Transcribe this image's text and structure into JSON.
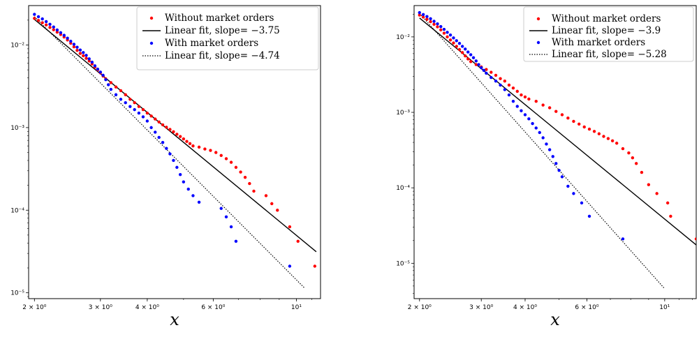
{
  "chart_data": [
    {
      "type": "scatter",
      "xlabel": "x",
      "xscale": "log",
      "yscale": "log",
      "xlim": [
        1.93,
        11.6
      ],
      "ylim": [
        8.5e-06,
        0.03
      ],
      "xticks": [
        {
          "value": 2,
          "label": "2 × 10⁰"
        },
        {
          "value": 3,
          "label": "3 × 10⁰"
        },
        {
          "value": 4,
          "label": "4 × 10⁰"
        },
        {
          "value": 6,
          "label": "6 × 10⁰"
        },
        {
          "value": 10,
          "label": "10¹"
        }
      ],
      "yticks": [
        {
          "value": 1e-05,
          "label": "10⁻⁵"
        },
        {
          "value": 0.0001,
          "label": "10⁻⁴"
        },
        {
          "value": 0.001,
          "label": "10⁻³"
        },
        {
          "value": 0.01,
          "label": "10⁻²"
        }
      ],
      "legend_position": "top-right",
      "series": [
        {
          "name": "Without market orders",
          "kind": "points",
          "color": "#ff0000",
          "points": [
            [
              2.0,
              0.021
            ],
            [
              2.05,
              0.0198
            ],
            [
              2.1,
              0.0186
            ],
            [
              2.15,
              0.0175
            ],
            [
              2.2,
              0.0163
            ],
            [
              2.25,
              0.0153
            ],
            [
              2.3,
              0.0143
            ],
            [
              2.35,
              0.0134
            ],
            [
              2.4,
              0.0125
            ],
            [
              2.45,
              0.0115
            ],
            [
              2.5,
              0.0105
            ],
            [
              2.55,
              0.0095
            ],
            [
              2.6,
              0.0086
            ],
            [
              2.65,
              0.0079
            ],
            [
              2.7,
              0.0074
            ],
            [
              2.75,
              0.0069
            ],
            [
              2.8,
              0.0064
            ],
            [
              2.85,
              0.0059
            ],
            [
              2.9,
              0.0054
            ],
            [
              2.95,
              0.005
            ],
            [
              3.0,
              0.0046
            ],
            [
              3.05,
              0.0042
            ],
            [
              3.1,
              0.0039
            ],
            [
              3.2,
              0.0035
            ],
            [
              3.3,
              0.0031
            ],
            [
              3.4,
              0.0028
            ],
            [
              3.5,
              0.0025
            ],
            [
              3.6,
              0.0022
            ],
            [
              3.7,
              0.002
            ],
            [
              3.8,
              0.0018
            ],
            [
              3.9,
              0.00165
            ],
            [
              4.0,
              0.0015
            ],
            [
              4.1,
              0.00138
            ],
            [
              4.2,
              0.00127
            ],
            [
              4.3,
              0.00117
            ],
            [
              4.4,
              0.00108
            ],
            [
              4.5,
              0.00101
            ],
            [
              4.6,
              0.00095
            ],
            [
              4.7,
              0.00089
            ],
            [
              4.8,
              0.00083
            ],
            [
              4.9,
              0.00078
            ],
            [
              5.0,
              0.00073
            ],
            [
              5.1,
              0.00068
            ],
            [
              5.2,
              0.00064
            ],
            [
              5.3,
              0.0006
            ],
            [
              5.5,
              0.00058
            ],
            [
              5.7,
              0.00055
            ],
            [
              5.9,
              0.00053
            ],
            [
              6.1,
              0.0005
            ],
            [
              6.3,
              0.00046
            ],
            [
              6.5,
              0.00042
            ],
            [
              6.7,
              0.00038
            ],
            [
              6.9,
              0.00033
            ],
            [
              7.1,
              0.00029
            ],
            [
              7.3,
              0.00025
            ],
            [
              7.5,
              0.00021
            ],
            [
              7.7,
              0.00017
            ],
            [
              8.3,
              0.00015
            ],
            [
              8.6,
              0.00012
            ],
            [
              8.9,
              0.0001
            ],
            [
              9.6,
              6.3e-05
            ],
            [
              10.1,
              4.2e-05
            ],
            [
              11.2,
              2.1e-05
            ]
          ]
        },
        {
          "name": "Linear fit, slope= −3.75",
          "kind": "fit",
          "color": "#000000",
          "dash": "solid",
          "endpoints": [
            [
              2.0,
              0.0204
            ],
            [
              11.3,
              3.14e-05
            ]
          ]
        },
        {
          "name": "With market orders",
          "kind": "points",
          "color": "#0000ff",
          "points": [
            [
              2.0,
              0.0235
            ],
            [
              2.05,
              0.022
            ],
            [
              2.1,
              0.0207
            ],
            [
              2.15,
              0.0192
            ],
            [
              2.2,
              0.0178
            ],
            [
              2.25,
              0.0165
            ],
            [
              2.3,
              0.0152
            ],
            [
              2.35,
              0.0141
            ],
            [
              2.4,
              0.0131
            ],
            [
              2.45,
              0.0121
            ],
            [
              2.5,
              0.0111
            ],
            [
              2.55,
              0.0102
            ],
            [
              2.6,
              0.0094
            ],
            [
              2.65,
              0.0087
            ],
            [
              2.7,
              0.0081
            ],
            [
              2.75,
              0.0075
            ],
            [
              2.8,
              0.0068
            ],
            [
              2.85,
              0.0062
            ],
            [
              2.9,
              0.0056
            ],
            [
              2.95,
              0.0051
            ],
            [
              3.0,
              0.0047
            ],
            [
              3.05,
              0.0043
            ],
            [
              3.1,
              0.0038
            ],
            [
              3.15,
              0.0033
            ],
            [
              3.2,
              0.0029
            ],
            [
              3.3,
              0.0025
            ],
            [
              3.4,
              0.0022
            ],
            [
              3.5,
              0.002
            ],
            [
              3.6,
              0.0018
            ],
            [
              3.7,
              0.00165
            ],
            [
              3.8,
              0.0015
            ],
            [
              3.9,
              0.00135
            ],
            [
              4.0,
              0.0012
            ],
            [
              4.1,
              0.001
            ],
            [
              4.2,
              0.00088
            ],
            [
              4.3,
              0.00076
            ],
            [
              4.4,
              0.00066
            ],
            [
              4.5,
              0.00056
            ],
            [
              4.6,
              0.00048
            ],
            [
              4.7,
              0.0004
            ],
            [
              4.8,
              0.00033
            ],
            [
              4.9,
              0.00027
            ],
            [
              5.0,
              0.00022
            ],
            [
              5.15,
              0.00018
            ],
            [
              5.3,
              0.00015
            ],
            [
              5.5,
              0.000125
            ],
            [
              6.3,
              0.000105
            ],
            [
              6.5,
              8.3e-05
            ],
            [
              6.7,
              6.3e-05
            ],
            [
              6.9,
              4.2e-05
            ],
            [
              9.6,
              2.1e-05
            ]
          ]
        },
        {
          "name": "Linear fit, slope= −4.74",
          "kind": "fit",
          "color": "#000000",
          "dash": "dotted",
          "endpoints": [
            [
              2.0,
              0.022
            ],
            [
              10.5,
              1.15e-05
            ]
          ]
        }
      ]
    },
    {
      "type": "scatter",
      "xlabel": "x",
      "xscale": "log",
      "yscale": "log",
      "xlim": [
        1.93,
        12.3
      ],
      "ylim": [
        3.4e-06,
        0.026
      ],
      "xticks": [
        {
          "value": 2,
          "label": "2 × 10⁰"
        },
        {
          "value": 3,
          "label": "3 × 10⁰"
        },
        {
          "value": 4,
          "label": "4 × 10⁰"
        },
        {
          "value": 6,
          "label": "6 × 10⁰"
        },
        {
          "value": 10,
          "label": "10¹"
        }
      ],
      "yticks": [
        {
          "value": 1e-05,
          "label": "10⁻⁵"
        },
        {
          "value": 0.0001,
          "label": "10⁻⁴"
        },
        {
          "value": 0.001,
          "label": "10⁻³"
        },
        {
          "value": 0.01,
          "label": "10⁻²"
        }
      ],
      "legend_position": "top-right",
      "series": [
        {
          "name": "Without market orders",
          "kind": "points",
          "color": "#ff0000",
          "points": [
            [
              2.0,
              0.0195
            ],
            [
              2.05,
              0.0183
            ],
            [
              2.1,
              0.0171
            ],
            [
              2.15,
              0.0159
            ],
            [
              2.2,
              0.0147
            ],
            [
              2.25,
              0.0136
            ],
            [
              2.3,
              0.0124
            ],
            [
              2.35,
              0.0112
            ],
            [
              2.4,
              0.01
            ],
            [
              2.45,
              0.0091
            ],
            [
              2.5,
              0.0083
            ],
            [
              2.55,
              0.0075
            ],
            [
              2.6,
              0.0068
            ],
            [
              2.65,
              0.0062
            ],
            [
              2.7,
              0.0056
            ],
            [
              2.75,
              0.0051
            ],
            [
              2.8,
              0.0047
            ],
            [
              2.9,
              0.0043
            ],
            [
              3.0,
              0.004
            ],
            [
              3.1,
              0.0037
            ],
            [
              3.2,
              0.0034
            ],
            [
              3.3,
              0.0031
            ],
            [
              3.4,
              0.0028
            ],
            [
              3.5,
              0.0026
            ],
            [
              3.6,
              0.0023
            ],
            [
              3.7,
              0.0021
            ],
            [
              3.8,
              0.0019
            ],
            [
              3.9,
              0.0017
            ],
            [
              4.0,
              0.0016
            ],
            [
              4.1,
              0.0015
            ],
            [
              4.3,
              0.0014
            ],
            [
              4.5,
              0.00125
            ],
            [
              4.7,
              0.00115
            ],
            [
              4.9,
              0.00103
            ],
            [
              5.1,
              0.00093
            ],
            [
              5.3,
              0.00084
            ],
            [
              5.5,
              0.00076
            ],
            [
              5.7,
              0.0007
            ],
            [
              5.9,
              0.00064
            ],
            [
              6.1,
              0.0006
            ],
            [
              6.3,
              0.00056
            ],
            [
              6.5,
              0.00052
            ],
            [
              6.7,
              0.00048
            ],
            [
              6.9,
              0.00045
            ],
            [
              7.1,
              0.00042
            ],
            [
              7.3,
              0.00039
            ],
            [
              7.6,
              0.00033
            ],
            [
              7.9,
              0.00029
            ],
            [
              8.1,
              0.00025
            ],
            [
              8.3,
              0.00021
            ],
            [
              8.6,
              0.00016
            ],
            [
              9.0,
              0.00011
            ],
            [
              9.5,
              8.4e-05
            ],
            [
              10.2,
              6.3e-05
            ],
            [
              10.4,
              4.2e-05
            ],
            [
              12.3,
              2.1e-05
            ]
          ]
        },
        {
          "name": "Linear fit, slope= −3.9",
          "kind": "fit",
          "color": "#000000",
          "dash": "solid",
          "endpoints": [
            [
              2.0,
              0.0178
            ],
            [
              12.3,
              1.75e-05
            ]
          ]
        },
        {
          "name": "With market orders",
          "kind": "points",
          "color": "#0000ff",
          "points": [
            [
              2.0,
              0.021
            ],
            [
              2.05,
              0.0198
            ],
            [
              2.1,
              0.0186
            ],
            [
              2.15,
              0.0174
            ],
            [
              2.2,
              0.0161
            ],
            [
              2.25,
              0.0149
            ],
            [
              2.3,
              0.0137
            ],
            [
              2.35,
              0.0126
            ],
            [
              2.4,
              0.0115
            ],
            [
              2.45,
              0.0106
            ],
            [
              2.5,
              0.0097
            ],
            [
              2.55,
              0.0089
            ],
            [
              2.6,
              0.0082
            ],
            [
              2.65,
              0.0075
            ],
            [
              2.7,
              0.0069
            ],
            [
              2.75,
              0.0063
            ],
            [
              2.8,
              0.0058
            ],
            [
              2.85,
              0.0053
            ],
            [
              2.9,
              0.0048
            ],
            [
              2.95,
              0.0043
            ],
            [
              3.0,
              0.0039
            ],
            [
              3.05,
              0.0036
            ],
            [
              3.1,
              0.0033
            ],
            [
              3.2,
              0.0029
            ],
            [
              3.3,
              0.0026
            ],
            [
              3.4,
              0.0023
            ],
            [
              3.5,
              0.002
            ],
            [
              3.6,
              0.0017
            ],
            [
              3.7,
              0.0014
            ],
            [
              3.8,
              0.0012
            ],
            [
              3.9,
              0.00105
            ],
            [
              4.0,
              0.00093
            ],
            [
              4.1,
              0.00082
            ],
            [
              4.2,
              0.00071
            ],
            [
              4.3,
              0.00062
            ],
            [
              4.4,
              0.00054
            ],
            [
              4.5,
              0.00046
            ],
            [
              4.6,
              0.00038
            ],
            [
              4.7,
              0.00032
            ],
            [
              4.8,
              0.00026
            ],
            [
              4.9,
              0.00021
            ],
            [
              5.0,
              0.00017
            ],
            [
              5.1,
              0.00014
            ],
            [
              5.3,
              0.000105
            ],
            [
              5.5,
              8.4e-05
            ],
            [
              5.8,
              6.3e-05
            ],
            [
              6.1,
              4.2e-05
            ],
            [
              7.6,
              2.1e-05
            ]
          ]
        },
        {
          "name": "Linear fit, slope= −5.28",
          "kind": "fit",
          "color": "#000000",
          "dash": "dotted",
          "endpoints": [
            [
              2.0,
              0.0205
            ],
            [
              10.0,
              4.6e-06
            ]
          ]
        }
      ]
    }
  ]
}
